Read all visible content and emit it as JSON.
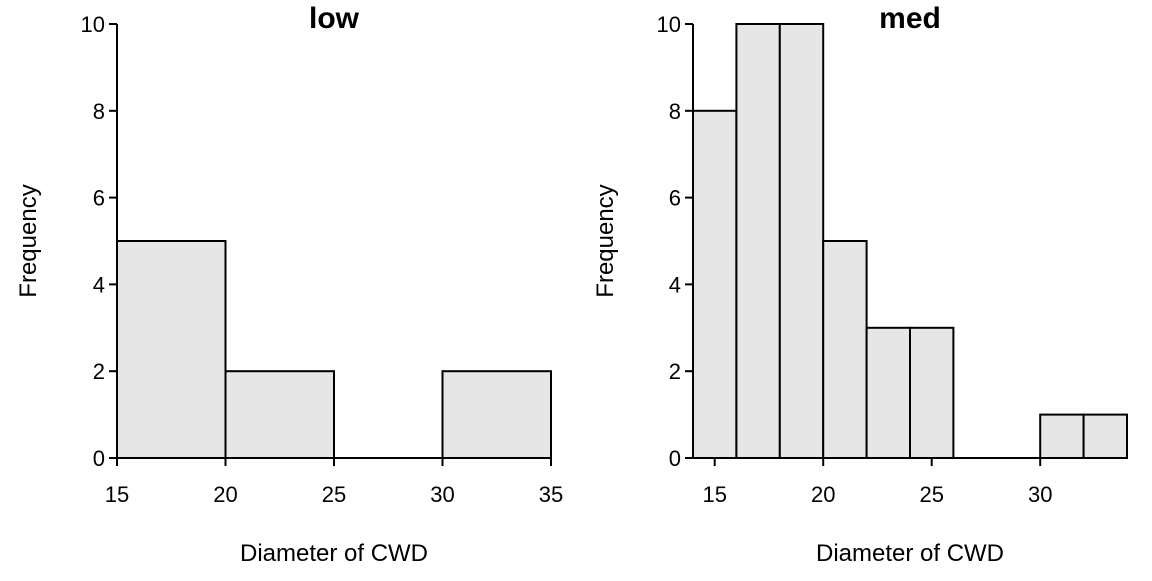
{
  "chart_data": [
    {
      "type": "bar",
      "title": "low",
      "xlabel": "Diameter of CWD",
      "ylabel": "Frequency",
      "xlim": [
        15,
        35
      ],
      "ylim": [
        0,
        10
      ],
      "x_ticks": [
        15,
        20,
        25,
        30,
        35
      ],
      "y_ticks": [
        0,
        2,
        4,
        6,
        8,
        10
      ],
      "bins": [
        [
          15,
          20
        ],
        [
          20,
          25
        ],
        [
          25,
          30
        ],
        [
          30,
          35
        ]
      ],
      "values": [
        5,
        2,
        0,
        2
      ],
      "bar_fill": "#e6e6e6",
      "grid": false
    },
    {
      "type": "bar",
      "title": "med",
      "xlabel": "Diameter of CWD",
      "ylabel": "Frequency",
      "xlim": [
        14,
        34
      ],
      "ylim": [
        0,
        10
      ],
      "x_ticks": [
        15,
        20,
        25,
        30
      ],
      "y_ticks": [
        0,
        2,
        4,
        6,
        8,
        10
      ],
      "bins": [
        [
          14,
          16
        ],
        [
          16,
          18
        ],
        [
          18,
          20
        ],
        [
          20,
          22
        ],
        [
          22,
          24
        ],
        [
          24,
          26
        ],
        [
          26,
          28
        ],
        [
          28,
          30
        ],
        [
          30,
          32
        ],
        [
          32,
          34
        ]
      ],
      "values": [
        8,
        10,
        10,
        5,
        3,
        3,
        0,
        0,
        1,
        1
      ],
      "bar_fill": "#e6e6e6",
      "grid": false
    }
  ]
}
